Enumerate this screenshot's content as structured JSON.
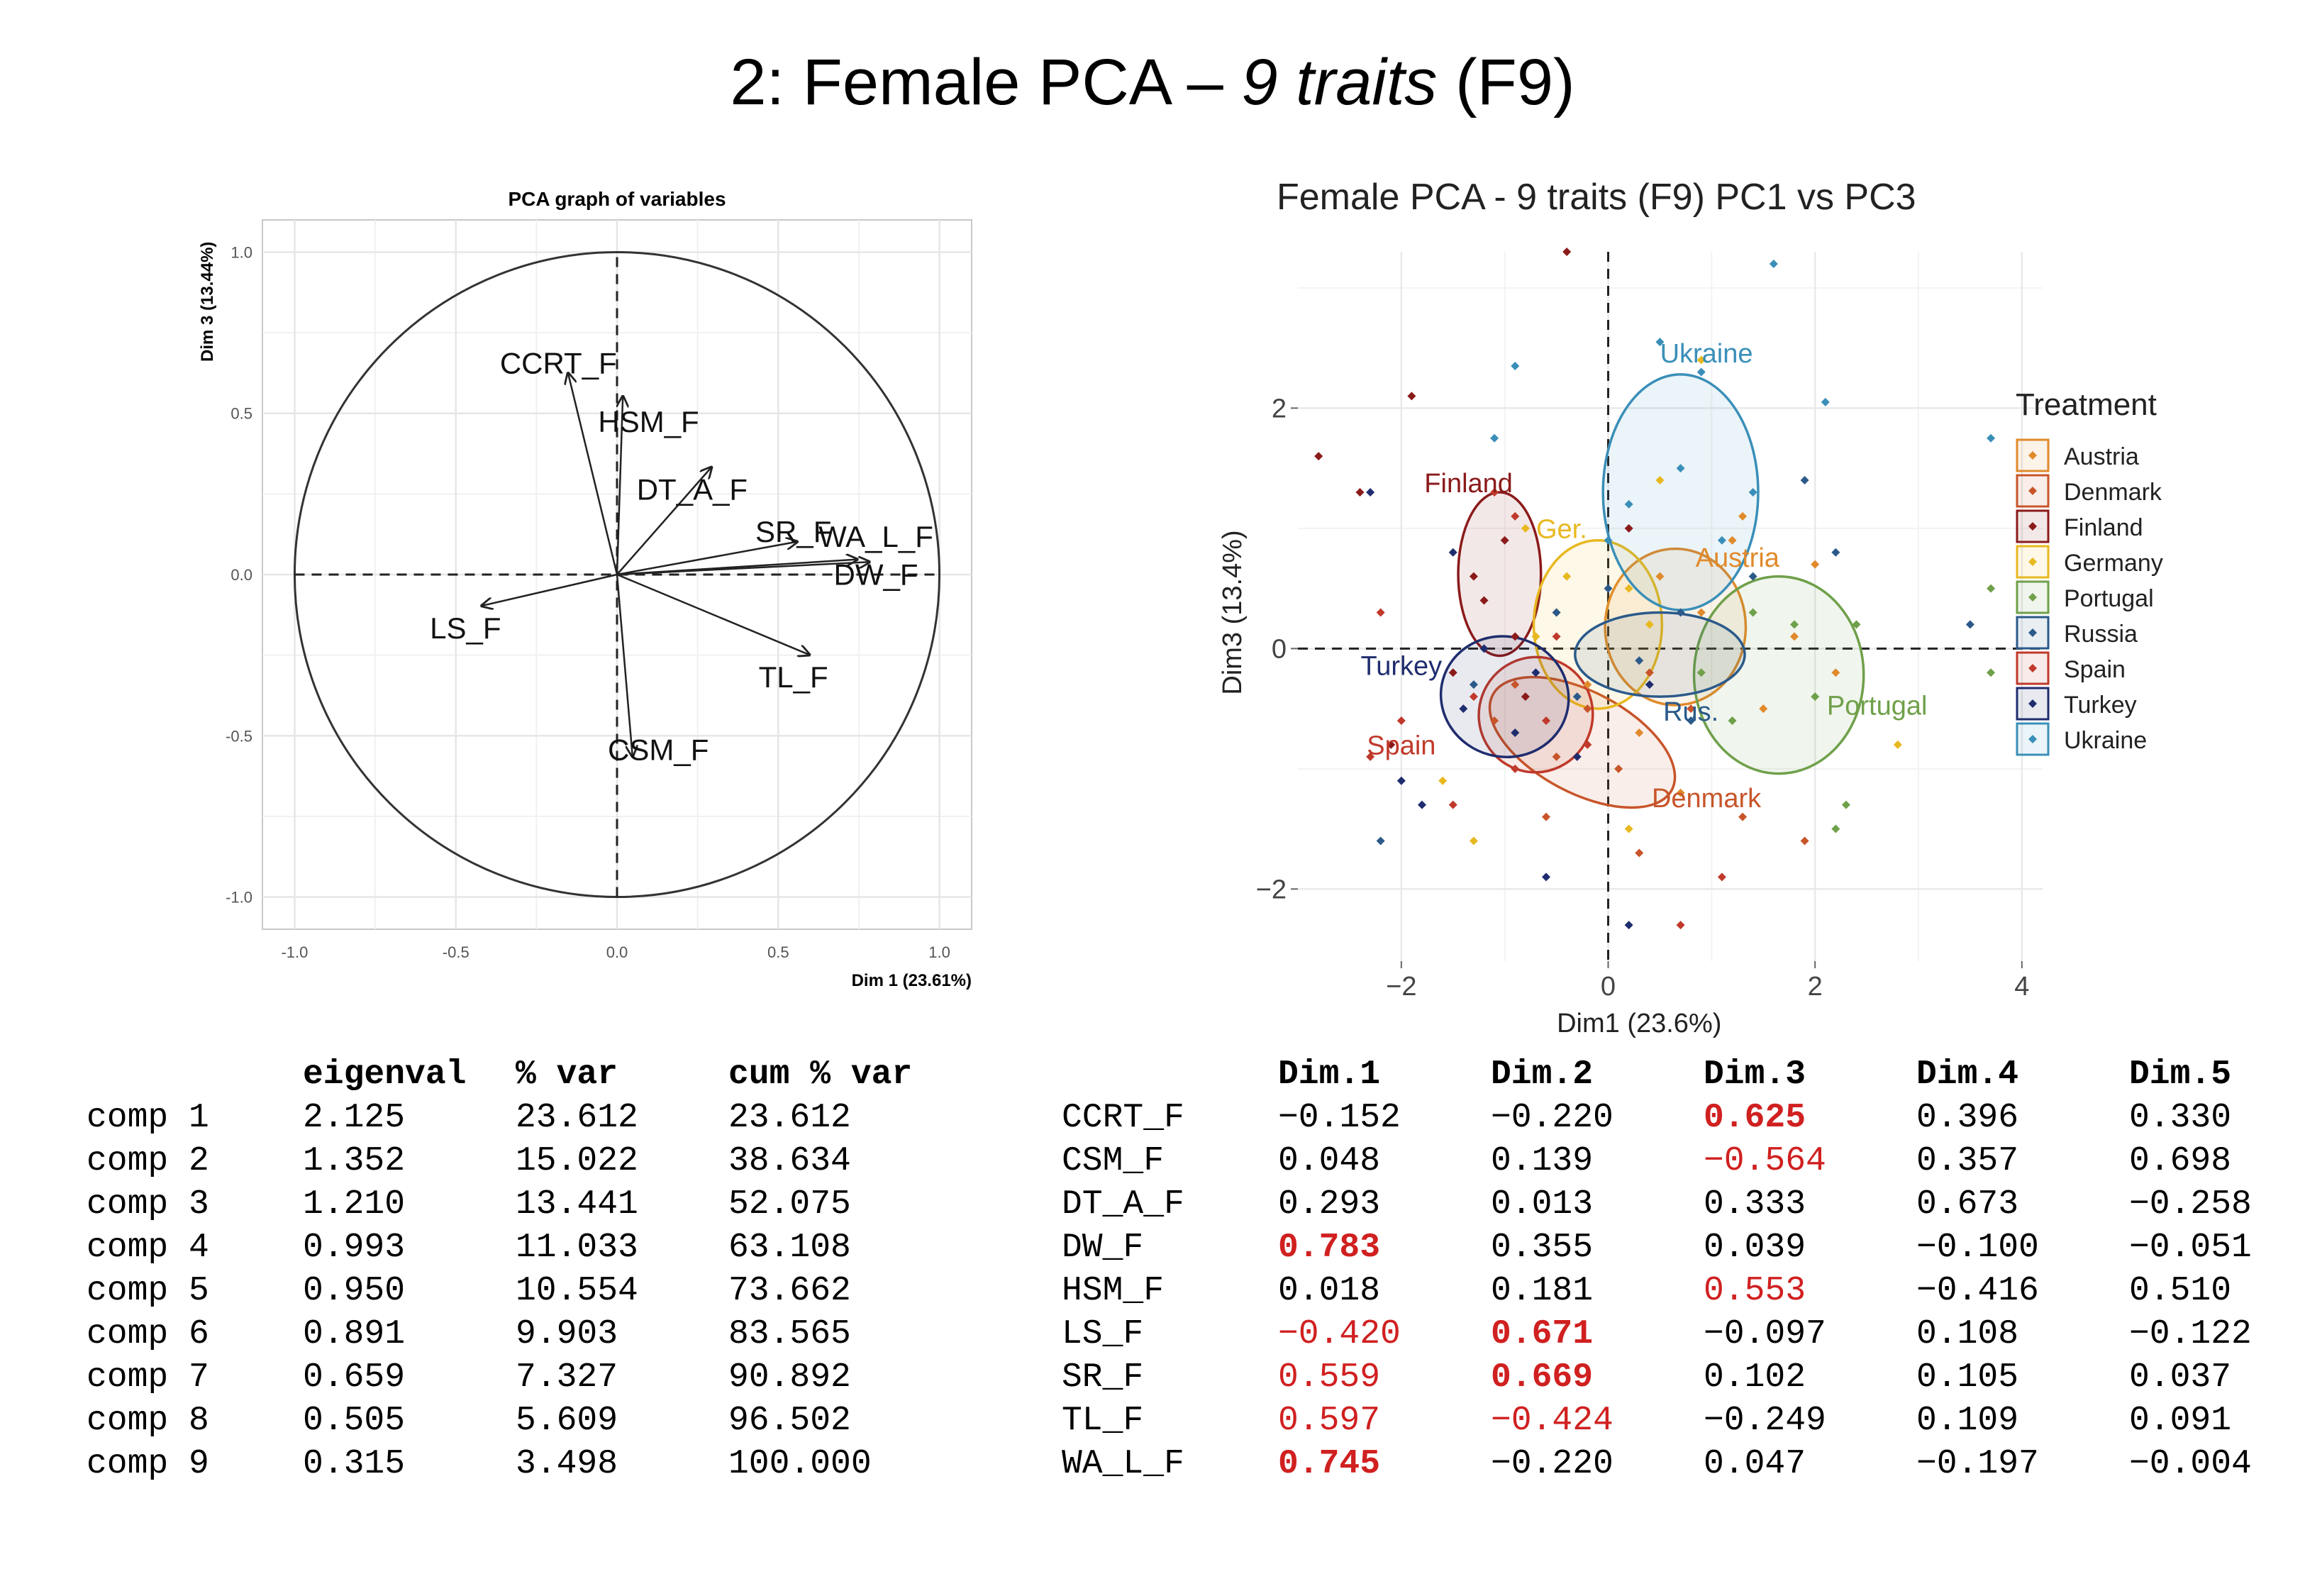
{
  "slide": {
    "title_prefix": "2: Female PCA – ",
    "title_italic": "9 traits",
    "title_suffix": " (F9)"
  },
  "chart_data": [
    {
      "type": "scatter",
      "subtype": "pca-variable-correlation-circle",
      "title": "PCA graph of variables",
      "xlabel": "Dim 1 (23.61%)",
      "ylabel": "Dim 3 (13.44%)",
      "xlim": [
        -1.1,
        1.1
      ],
      "ylim": [
        -1.1,
        1.1
      ],
      "xticks": [
        "-1.0",
        "-0.5",
        "0.0",
        "0.5",
        "1.0"
      ],
      "yticks": [
        "-1.0",
        "-0.5",
        "0.0",
        "0.5",
        "1.0"
      ],
      "grid": true,
      "arrows": [
        {
          "label": "CCRT_F",
          "x": -0.152,
          "y": 0.625
        },
        {
          "label": "HSM_F",
          "x": 0.018,
          "y": 0.553
        },
        {
          "label": "DT_A_F",
          "x": 0.293,
          "y": 0.333
        },
        {
          "label": "SR_F",
          "x": 0.559,
          "y": 0.102
        },
        {
          "label": "WA_L_F",
          "x": 0.745,
          "y": 0.047
        },
        {
          "label": "DW_F",
          "x": 0.783,
          "y": 0.039
        },
        {
          "label": "LS_F",
          "x": -0.42,
          "y": -0.097
        },
        {
          "label": "TL_F",
          "x": 0.597,
          "y": -0.249
        },
        {
          "label": "CSM_F",
          "x": 0.048,
          "y": -0.564
        }
      ]
    },
    {
      "type": "scatter",
      "title": "Female PCA - 9 traits (F9) PC1 vs PC3",
      "xlabel": "Dim1 (23.6%)",
      "ylabel": "Dim3 (13.4%)",
      "xlim": [
        -3.0,
        4.2
      ],
      "ylim": [
        -2.6,
        3.3
      ],
      "xticks": [
        "-2",
        "0",
        "2",
        "4"
      ],
      "yticks": [
        "-2",
        "0",
        "2"
      ],
      "grid": true,
      "legend": {
        "title": "Treatment",
        "position": "right"
      },
      "series": [
        {
          "name": "Austria",
          "color": "#e08a2c",
          "ellipse": {
            "cx": 0.65,
            "cy": 0.18,
            "rx": 0.68,
            "ry": 0.65,
            "angle": 0
          },
          "label": "Austria",
          "label_pos": [
            1.25,
            0.68
          ],
          "points": [
            [
              0.5,
              0.6
            ],
            [
              0.9,
              0.3
            ],
            [
              1.2,
              0.9
            ],
            [
              -0.2,
              -0.3
            ],
            [
              1.5,
              -0.5
            ],
            [
              0.3,
              -0.7
            ],
            [
              1.8,
              0.1
            ],
            [
              2.2,
              -0.2
            ],
            [
              0.7,
              -1.2
            ],
            [
              1.3,
              1.1
            ],
            [
              -0.5,
              0.3
            ],
            [
              2.0,
              0.7
            ]
          ]
        },
        {
          "name": "Denmark",
          "color": "#c8552a",
          "ellipse": {
            "cx": -0.25,
            "cy": -0.78,
            "rx": 0.98,
            "ry": 0.42,
            "angle": -28
          },
          "label": "Denmark",
          "label_pos": [
            0.95,
            -1.32
          ],
          "points": [
            [
              -0.9,
              -0.3
            ],
            [
              -0.5,
              -0.9
            ],
            [
              0.1,
              -1.0
            ],
            [
              -0.2,
              -0.5
            ],
            [
              0.4,
              -0.2
            ],
            [
              -1.1,
              -0.6
            ],
            [
              0.8,
              -0.5
            ],
            [
              1.3,
              -1.4
            ],
            [
              -0.6,
              -1.4
            ],
            [
              1.9,
              -1.6
            ],
            [
              0.3,
              -1.7
            ]
          ]
        },
        {
          "name": "Finland",
          "color": "#8b1a1a",
          "ellipse": {
            "cx": -1.05,
            "cy": 0.62,
            "rx": 0.4,
            "ry": 0.68,
            "angle": 0
          },
          "label": "Finland",
          "label_pos": [
            -1.35,
            1.3
          ],
          "points": [
            [
              -1.9,
              2.1
            ],
            [
              -1.0,
              0.9
            ],
            [
              -1.2,
              0.4
            ],
            [
              -0.9,
              0.1
            ],
            [
              -2.4,
              1.3
            ],
            [
              -0.4,
              3.3
            ],
            [
              -2.8,
              1.6
            ],
            [
              -1.5,
              -0.2
            ],
            [
              -0.8,
              -0.4
            ],
            [
              -2.1,
              -0.8
            ],
            [
              -1.3,
              0.6
            ],
            [
              0.2,
              1.0
            ]
          ]
        },
        {
          "name": "Germany",
          "color": "#e8b820",
          "ellipse": {
            "cx": -0.1,
            "cy": 0.2,
            "rx": 0.62,
            "ry": 0.7,
            "angle": 0
          },
          "label": "Ger.",
          "label_pos": [
            -0.45,
            0.92
          ],
          "points": [
            [
              -0.4,
              0.6
            ],
            [
              0.2,
              0.5
            ],
            [
              -0.7,
              0.1
            ],
            [
              0.4,
              0.2
            ],
            [
              0.9,
              2.4
            ],
            [
              -1.6,
              -1.1
            ],
            [
              0.2,
              -1.5
            ],
            [
              -1.3,
              -1.6
            ],
            [
              2.8,
              -0.8
            ],
            [
              0.5,
              1.4
            ],
            [
              -0.8,
              1.0
            ]
          ]
        },
        {
          "name": "Portugal",
          "color": "#6fa04a",
          "ellipse": {
            "cx": 1.65,
            "cy": -0.22,
            "rx": 0.82,
            "ry": 0.82,
            "angle": 0
          },
          "label": "Portugal",
          "label_pos": [
            2.6,
            -0.55
          ],
          "points": [
            [
              1.4,
              0.3
            ],
            [
              2.0,
              -0.4
            ],
            [
              1.8,
              0.2
            ],
            [
              2.4,
              0.2
            ],
            [
              3.7,
              0.5
            ],
            [
              2.3,
              -1.3
            ],
            [
              3.7,
              -0.2
            ],
            [
              1.2,
              -0.6
            ],
            [
              2.2,
              -1.5
            ],
            [
              0.9,
              -0.2
            ]
          ]
        },
        {
          "name": "Russia",
          "color": "#2b5a8a",
          "ellipse": {
            "cx": 0.5,
            "cy": -0.05,
            "rx": 0.82,
            "ry": 0.35,
            "angle": 0
          },
          "label": "Rus.",
          "label_pos": [
            0.8,
            -0.6
          ],
          "points": [
            [
              0.3,
              -0.1
            ],
            [
              0.7,
              0.3
            ],
            [
              -0.5,
              0.3
            ],
            [
              2.2,
              0.8
            ],
            [
              0.0,
              0.5
            ],
            [
              -1.3,
              -0.3
            ],
            [
              1.9,
              1.4
            ],
            [
              0.8,
              -0.6
            ],
            [
              -2.2,
              -1.6
            ],
            [
              3.5,
              0.2
            ],
            [
              -0.3,
              -0.4
            ],
            [
              1.4,
              0.6
            ]
          ]
        },
        {
          "name": "Spain",
          "color": "#c0392b",
          "ellipse": {
            "cx": -0.7,
            "cy": -0.55,
            "rx": 0.55,
            "ry": 0.48,
            "angle": -20
          },
          "label": "Spain",
          "label_pos": [
            -2.0,
            -0.88
          ],
          "points": [
            [
              -1.3,
              -0.4
            ],
            [
              -0.6,
              -0.6
            ],
            [
              -0.9,
              -1.0
            ],
            [
              -0.2,
              -0.8
            ],
            [
              -2.0,
              -0.6
            ],
            [
              -1.5,
              -1.3
            ],
            [
              0.7,
              -2.3
            ],
            [
              1.1,
              -1.9
            ],
            [
              -2.3,
              -0.9
            ],
            [
              -0.9,
              1.1
            ],
            [
              -2.2,
              0.3
            ],
            [
              -1.1,
              1.3
            ],
            [
              -0.5,
              0.1
            ]
          ]
        },
        {
          "name": "Turkey",
          "color": "#1f2d6e",
          "ellipse": {
            "cx": -1.0,
            "cy": -0.4,
            "rx": 0.62,
            "ry": 0.5,
            "angle": -15
          },
          "label": "Turkey",
          "label_pos": [
            -2.0,
            -0.22
          ],
          "points": [
            [
              -1.4,
              -0.5
            ],
            [
              -0.9,
              -0.7
            ],
            [
              -1.2,
              0.0
            ],
            [
              -0.3,
              -0.9
            ],
            [
              -2.0,
              -1.1
            ],
            [
              0.2,
              -2.3
            ],
            [
              -0.6,
              -1.9
            ],
            [
              -1.8,
              -1.3
            ],
            [
              -1.5,
              0.8
            ],
            [
              -0.7,
              -0.2
            ],
            [
              -2.3,
              1.3
            ],
            [
              0.4,
              -0.3
            ]
          ]
        },
        {
          "name": "Ukraine",
          "color": "#3a8fb8",
          "ellipse": {
            "cx": 0.7,
            "cy": 1.3,
            "rx": 0.75,
            "ry": 0.98,
            "angle": 0
          },
          "label": "Ukraine",
          "label_pos": [
            0.95,
            2.38
          ],
          "points": [
            [
              0.2,
              1.2
            ],
            [
              0.7,
              1.5
            ],
            [
              1.1,
              0.9
            ],
            [
              0.9,
              2.3
            ],
            [
              0.5,
              2.55
            ],
            [
              1.6,
              3.2
            ],
            [
              -0.9,
              2.35
            ],
            [
              -1.1,
              1.75
            ],
            [
              2.1,
              2.05
            ],
            [
              3.7,
              1.75
            ],
            [
              0.0,
              0.9
            ],
            [
              1.4,
              1.3
            ]
          ]
        }
      ]
    }
  ],
  "eigen_table": {
    "headers": [
      "",
      "eigenval",
      "% var",
      "cum % var"
    ],
    "rows": [
      [
        "comp 1",
        "2.125",
        "23.612",
        "23.612"
      ],
      [
        "comp 2",
        "1.352",
        "15.022",
        "38.634"
      ],
      [
        "comp 3",
        "1.210",
        "13.441",
        "52.075"
      ],
      [
        "comp 4",
        "0.993",
        "11.033",
        "63.108"
      ],
      [
        "comp 5",
        "0.950",
        "10.554",
        "73.662"
      ],
      [
        "comp 6",
        "0.891",
        "9.903",
        "83.565"
      ],
      [
        "comp 7",
        "0.659",
        "7.327",
        "90.892"
      ],
      [
        "comp 8",
        "0.505",
        "5.609",
        "96.502"
      ],
      [
        "comp 9",
        "0.315",
        "3.498",
        "100.000"
      ]
    ]
  },
  "loadings_table": {
    "headers": [
      "",
      "Dim.1",
      "Dim.2",
      "Dim.3",
      "Dim.4",
      "Dim.5"
    ],
    "highlight_color": "#d02020",
    "rows": [
      {
        "cells": [
          "CCRT_F",
          "−0.152",
          "−0.220",
          "0.625",
          "0.396",
          "0.330"
        ],
        "red": [
          3
        ],
        "bold": [
          3
        ]
      },
      {
        "cells": [
          "CSM_F",
          "0.048",
          "0.139",
          "−0.564",
          "0.357",
          "0.698"
        ],
        "red": [
          3
        ],
        "bold": []
      },
      {
        "cells": [
          "DT_A_F",
          "0.293",
          "0.013",
          "0.333",
          "0.673",
          "−0.258"
        ],
        "red": [],
        "bold": []
      },
      {
        "cells": [
          "DW_F",
          "0.783",
          "0.355",
          "0.039",
          "−0.100",
          "−0.051"
        ],
        "red": [
          1
        ],
        "bold": [
          1
        ]
      },
      {
        "cells": [
          "HSM_F",
          "0.018",
          "0.181",
          "0.553",
          "−0.416",
          "0.510"
        ],
        "red": [
          3
        ],
        "bold": []
      },
      {
        "cells": [
          "LS_F",
          "−0.420",
          "0.671",
          "−0.097",
          "0.108",
          "−0.122"
        ],
        "red": [
          1,
          2
        ],
        "bold": [
          2
        ]
      },
      {
        "cells": [
          "SR_F",
          "0.559",
          "0.669",
          "0.102",
          "0.105",
          "0.037"
        ],
        "red": [
          1,
          2
        ],
        "bold": [
          2
        ]
      },
      {
        "cells": [
          "TL_F",
          "0.597",
          "−0.424",
          "−0.249",
          "0.109",
          "0.091"
        ],
        "red": [
          1,
          2
        ],
        "bold": []
      },
      {
        "cells": [
          "WA_L_F",
          "0.745",
          "−0.220",
          "0.047",
          "−0.197",
          "−0.004"
        ],
        "red": [
          1
        ],
        "bold": [
          1
        ]
      }
    ]
  }
}
